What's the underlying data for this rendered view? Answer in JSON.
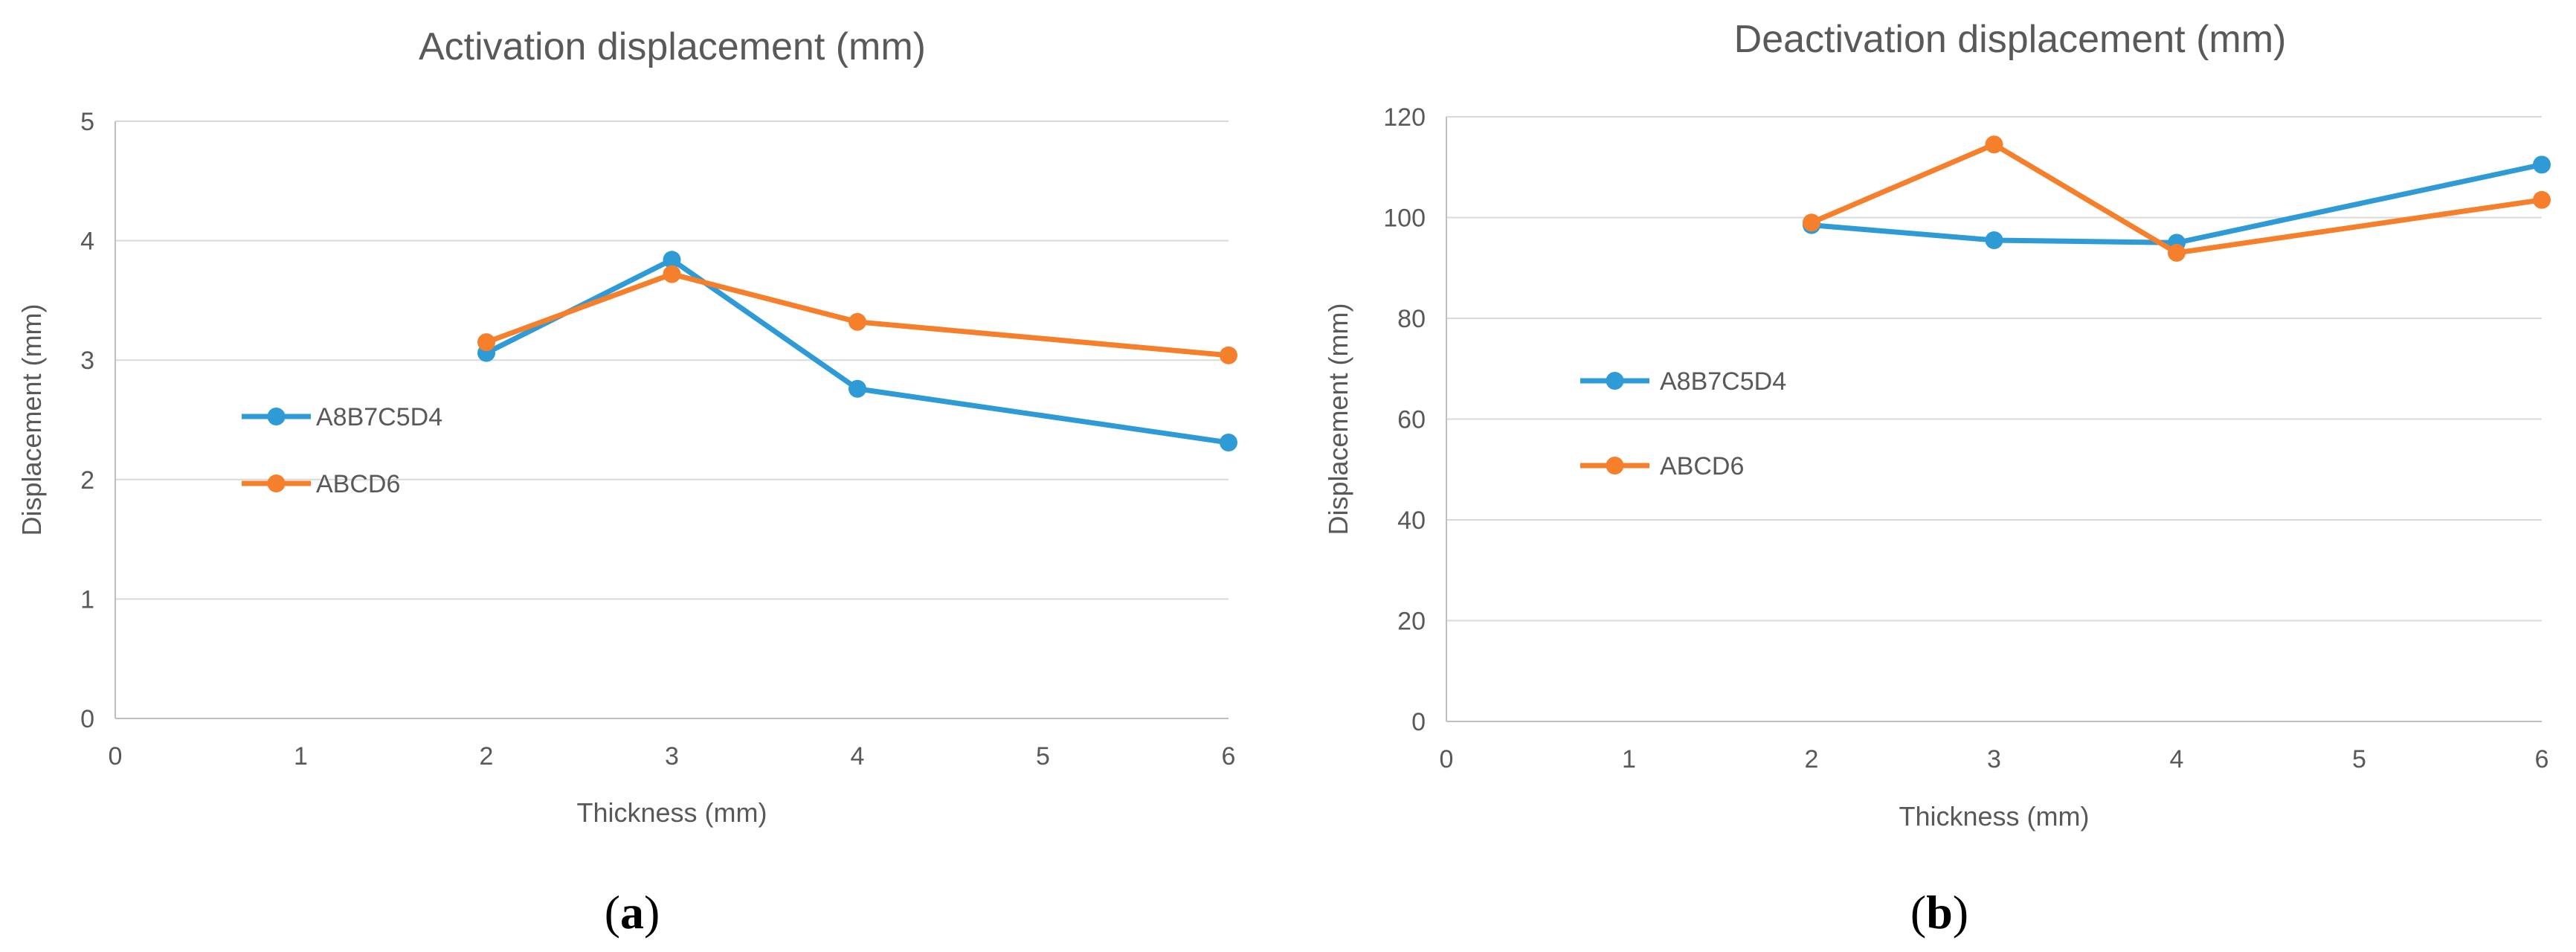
{
  "chart_data": [
    {
      "type": "line",
      "title": "Activation displacement (mm)",
      "xlabel": "Thickness (mm)",
      "ylabel": "Displacement (mm)",
      "xlim": [
        0,
        6
      ],
      "ylim": [
        0,
        5
      ],
      "xticks": [
        0,
        1,
        2,
        3,
        4,
        5,
        6
      ],
      "yticks": [
        0,
        1,
        2,
        3,
        4,
        5
      ],
      "grid": true,
      "legend_position": "left",
      "caption_letter": "a",
      "series": [
        {
          "name": "A8B7C5D4",
          "color": "#2e9bd6",
          "x": [
            2,
            3,
            4,
            6
          ],
          "y": [
            3.06,
            3.84,
            2.76,
            2.31
          ]
        },
        {
          "name": "ABCD6",
          "color": "#f57f2a",
          "x": [
            2,
            3,
            4,
            6
          ],
          "y": [
            3.15,
            3.72,
            3.32,
            3.04
          ]
        }
      ]
    },
    {
      "type": "line",
      "title": "Deactivation displacement (mm)",
      "xlabel": "Thickness (mm)",
      "ylabel": "Displacement (mm)",
      "xlim": [
        0,
        6
      ],
      "ylim": [
        0,
        120
      ],
      "xticks": [
        0,
        1,
        2,
        3,
        4,
        5,
        6
      ],
      "yticks": [
        0,
        20,
        40,
        60,
        80,
        100,
        120
      ],
      "grid": true,
      "legend_position": "left",
      "caption_letter": "b",
      "series": [
        {
          "name": "A8B7C5D4",
          "color": "#2e9bd6",
          "x": [
            2,
            3,
            4,
            6
          ],
          "y": [
            98.5,
            95.5,
            95,
            110.5
          ]
        },
        {
          "name": "ABCD6",
          "color": "#f57f2a",
          "x": [
            2,
            3,
            4,
            6
          ],
          "y": [
            99,
            114.5,
            93,
            103.5
          ]
        }
      ]
    }
  ]
}
